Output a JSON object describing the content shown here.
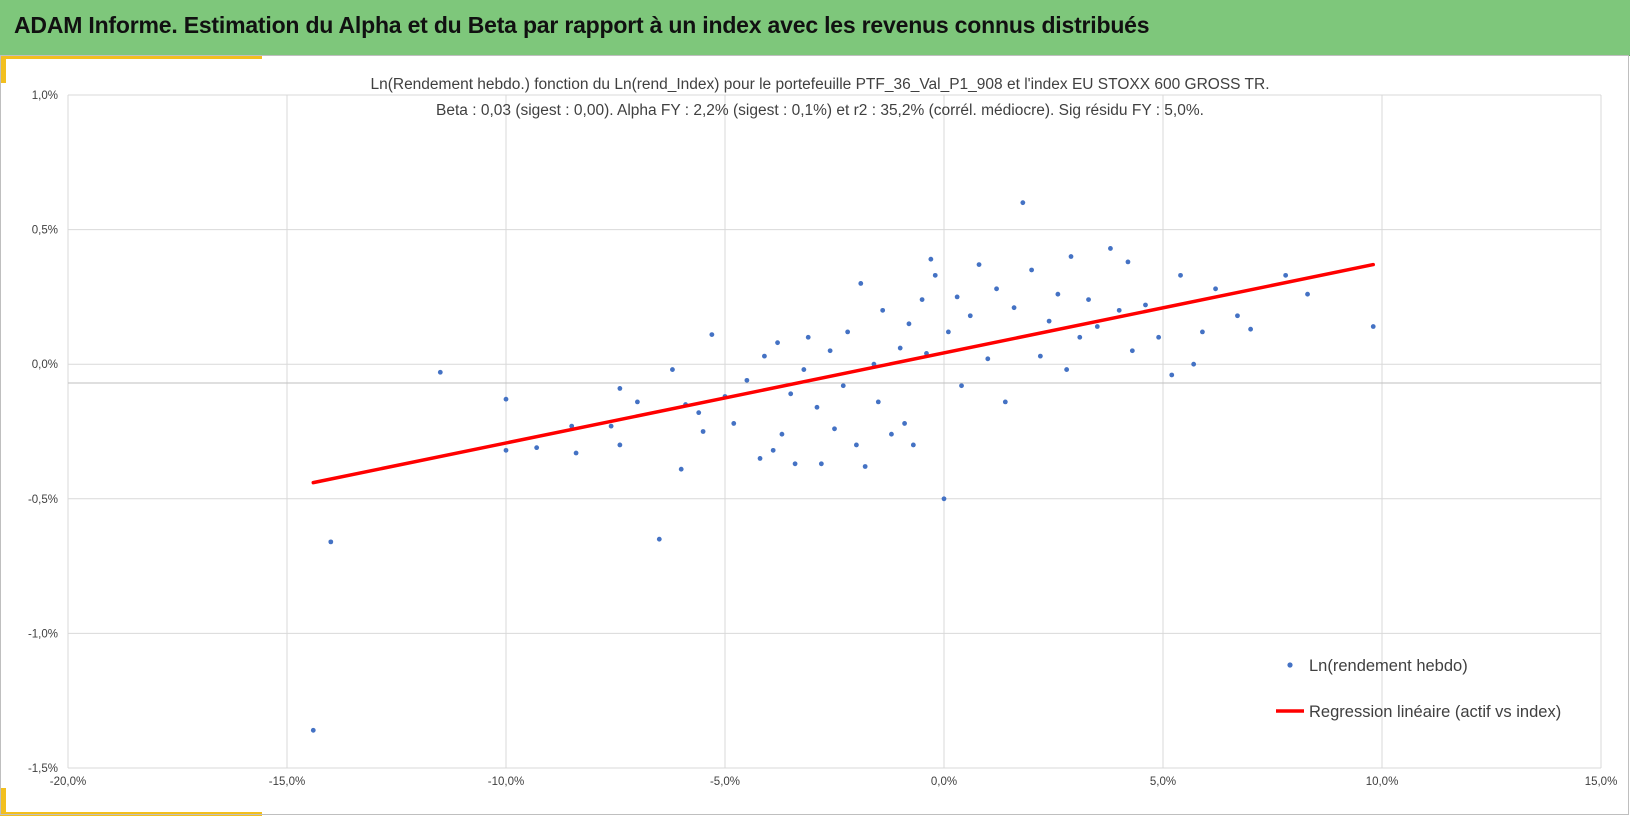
{
  "banner": {
    "title": "ADAM Informe. Estimation du Alpha et du Beta par rapport à un index avec les revenus connus distribués"
  },
  "colors": {
    "banner": "#7ec77b",
    "accent": "#f2bf1f",
    "points": "#4472c4",
    "regression": "#ff0000",
    "grid": "#d9d9d9"
  },
  "chart_data": {
    "type": "scatter",
    "subtitle_line1": "Ln(Rendement hebdo.) fonction du Ln(rend_Index) pour le portefeuille PTF_36_Val_P1_908 et l'index EU STOXX 600 GROSS TR.",
    "subtitle_line2": "Beta : 0,03 (sigest : 0,00). Alpha FY : 2,2% (sigest : 0,1%) et r2 : 35,2% (corrél. médiocre). Sig résidu FY : 5,0%.",
    "xlim": [
      -20,
      15
    ],
    "ylim": [
      -1.5,
      1.0
    ],
    "x_ticks": [
      "-20,0%",
      "-15,0%",
      "-10,0%",
      "-5,0%",
      "0,0%",
      "5,0%",
      "10,0%",
      "15,0%"
    ],
    "y_ticks": [
      "1,0%",
      "0,5%",
      "0,0%",
      "-0,5%",
      "-1,0%",
      "-1,5%"
    ],
    "grid": true,
    "legend_position": "bottom-right",
    "series": [
      {
        "name": "Ln(rendement hebdo)",
        "kind": "scatter",
        "points": [
          [
            -14.4,
            -1.36
          ],
          [
            -14.0,
            -0.66
          ],
          [
            -11.5,
            -0.03
          ],
          [
            -10.0,
            -0.13
          ],
          [
            -10.0,
            -0.32
          ],
          [
            -9.3,
            -0.31
          ],
          [
            -8.5,
            -0.23
          ],
          [
            -8.4,
            -0.33
          ],
          [
            -7.6,
            -0.23
          ],
          [
            -7.4,
            -0.09
          ],
          [
            -7.4,
            -0.3
          ],
          [
            -7.0,
            -0.14
          ],
          [
            -6.5,
            -0.65
          ],
          [
            -6.2,
            -0.02
          ],
          [
            -6.0,
            -0.39
          ],
          [
            -5.9,
            -0.15
          ],
          [
            -5.6,
            -0.18
          ],
          [
            -5.5,
            -0.25
          ],
          [
            -5.3,
            0.11
          ],
          [
            -5.0,
            -0.12
          ],
          [
            -4.8,
            -0.22
          ],
          [
            -4.5,
            -0.06
          ],
          [
            -4.2,
            -0.35
          ],
          [
            -4.1,
            0.03
          ],
          [
            -3.9,
            -0.32
          ],
          [
            -3.8,
            0.08
          ],
          [
            -3.7,
            -0.26
          ],
          [
            -3.5,
            -0.11
          ],
          [
            -3.4,
            -0.37
          ],
          [
            -3.2,
            -0.02
          ],
          [
            -3.1,
            0.1
          ],
          [
            -2.9,
            -0.16
          ],
          [
            -2.8,
            -0.37
          ],
          [
            -2.6,
            0.05
          ],
          [
            -2.5,
            -0.24
          ],
          [
            -2.3,
            -0.08
          ],
          [
            -2.2,
            0.12
          ],
          [
            -2.0,
            -0.3
          ],
          [
            -1.9,
            0.3
          ],
          [
            -1.8,
            -0.38
          ],
          [
            -1.6,
            0.0
          ],
          [
            -1.5,
            -0.14
          ],
          [
            -1.4,
            0.2
          ],
          [
            -1.2,
            -0.26
          ],
          [
            -1.0,
            0.06
          ],
          [
            -0.9,
            -0.22
          ],
          [
            -0.8,
            0.15
          ],
          [
            -0.7,
            -0.3
          ],
          [
            -0.5,
            0.24
          ],
          [
            -0.4,
            0.04
          ],
          [
            -0.3,
            0.39
          ],
          [
            -0.2,
            0.33
          ],
          [
            0.0,
            -0.5
          ],
          [
            0.1,
            0.12
          ],
          [
            0.3,
            0.25
          ],
          [
            0.4,
            -0.08
          ],
          [
            0.6,
            0.18
          ],
          [
            0.8,
            0.37
          ],
          [
            1.0,
            0.02
          ],
          [
            1.2,
            0.28
          ],
          [
            1.4,
            -0.14
          ],
          [
            1.6,
            0.21
          ],
          [
            1.8,
            0.6
          ],
          [
            2.0,
            0.35
          ],
          [
            2.2,
            0.03
          ],
          [
            2.4,
            0.16
          ],
          [
            2.6,
            0.26
          ],
          [
            2.8,
            -0.02
          ],
          [
            2.9,
            0.4
          ],
          [
            3.1,
            0.1
          ],
          [
            3.3,
            0.24
          ],
          [
            3.5,
            0.14
          ],
          [
            3.8,
            0.43
          ],
          [
            4.0,
            0.2
          ],
          [
            4.2,
            0.38
          ],
          [
            4.3,
            0.05
          ],
          [
            4.6,
            0.22
          ],
          [
            4.9,
            0.1
          ],
          [
            5.2,
            -0.04
          ],
          [
            5.4,
            0.33
          ],
          [
            5.7,
            0.0
          ],
          [
            5.9,
            0.12
          ],
          [
            6.2,
            0.28
          ],
          [
            6.7,
            0.18
          ],
          [
            7.0,
            0.13
          ],
          [
            7.8,
            0.33
          ],
          [
            8.3,
            0.26
          ],
          [
            9.8,
            0.14
          ]
        ]
      },
      {
        "name": "Regression linéaire (actif vs index)",
        "kind": "line",
        "x": [
          -14.4,
          9.8
        ],
        "y": [
          -0.44,
          0.37
        ]
      }
    ]
  }
}
